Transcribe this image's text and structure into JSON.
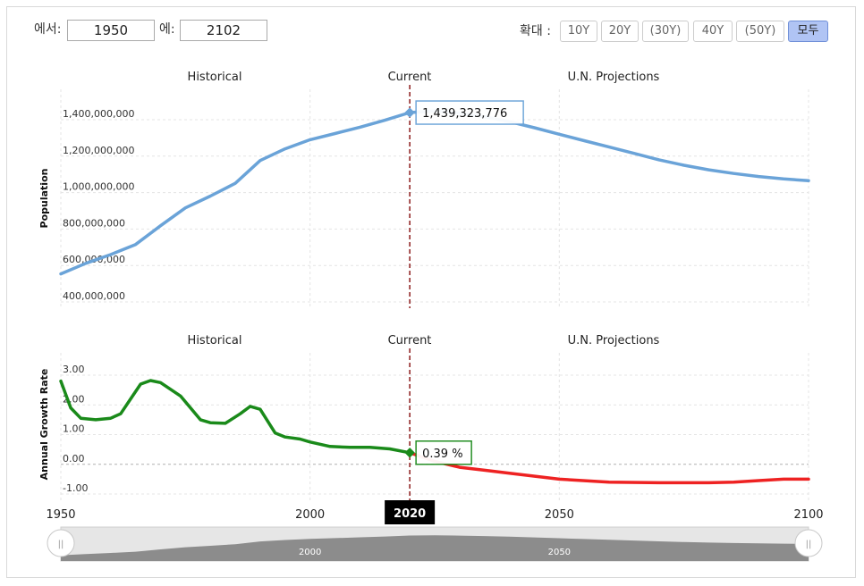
{
  "range": {
    "from_label": "에서:",
    "from_value": "1950",
    "to_label": "에:",
    "to_value": "2102"
  },
  "zoom": {
    "label": "확대 :",
    "buttons": [
      "10Y",
      "20Y",
      "(30Y)",
      "40Y",
      "(50Y)",
      "모두"
    ],
    "active_index": 5
  },
  "colors": {
    "population_line": "#6aa3d8",
    "growth_historical": "#1a8a1a",
    "growth_projection": "#ee2222",
    "current_marker": "#8b1a1a"
  },
  "chart_data": [
    {
      "type": "line",
      "section_labels": [
        "Historical",
        "Current",
        "U.N. Projections"
      ],
      "ylabel": "Population",
      "yticks": [
        "400,000,000",
        "600,000,000",
        "800,000,000",
        "1,000,000,000",
        "1,200,000,000",
        "1,400,000,000"
      ],
      "ylim": [
        400000000,
        1600000000
      ],
      "xlim": [
        1950,
        2100
      ],
      "current_year": 2020,
      "current_label": "1,439,323,776",
      "series": [
        {
          "values": [
            [
              1950,
              554000000
            ],
            [
              1955,
              612000000
            ],
            [
              1960,
              660000000
            ],
            [
              1965,
              715000000
            ],
            [
              1970,
              818000000
            ],
            [
              1975,
              916000000
            ],
            [
              1980,
              981000000
            ],
            [
              1985,
              1051000000
            ],
            [
              1990,
              1176000000
            ],
            [
              1995,
              1240000000
            ],
            [
              2000,
              1290000000
            ],
            [
              2005,
              1324000000
            ],
            [
              2010,
              1359000000
            ],
            [
              2015,
              1397000000
            ],
            [
              2020,
              1439000000
            ],
            [
              2025,
              1448000000
            ],
            [
              2030,
              1436000000
            ],
            [
              2035,
              1416000000
            ],
            [
              2040,
              1389000000
            ],
            [
              2045,
              1356000000
            ],
            [
              2050,
              1320000000
            ],
            [
              2055,
              1285000000
            ],
            [
              2060,
              1250000000
            ],
            [
              2065,
              1215000000
            ],
            [
              2070,
              1180000000
            ],
            [
              2075,
              1150000000
            ],
            [
              2080,
              1125000000
            ],
            [
              2085,
              1105000000
            ],
            [
              2090,
              1088000000
            ],
            [
              2095,
              1075000000
            ],
            [
              2100,
              1065000000
            ]
          ]
        }
      ]
    },
    {
      "type": "line",
      "section_labels": [
        "Historical",
        "Current",
        "U.N. Projections"
      ],
      "ylabel": "Annual Growth Rate",
      "yticks": [
        "-1.00",
        "0.00",
        "1.00",
        "2.00",
        "3.00"
      ],
      "ylim": [
        -1,
        3.5
      ],
      "xlim": [
        1950,
        2100
      ],
      "current_year": 2020,
      "current_label": "0.39 %",
      "series": [
        {
          "values": [
            [
              1950,
              2.8
            ],
            [
              1952,
              1.9
            ],
            [
              1954,
              1.55
            ],
            [
              1957,
              1.5
            ],
            [
              1960,
              1.55
            ],
            [
              1962,
              1.7
            ],
            [
              1964,
              2.2
            ],
            [
              1966,
              2.7
            ],
            [
              1968,
              2.82
            ],
            [
              1970,
              2.75
            ],
            [
              1974,
              2.3
            ],
            [
              1978,
              1.5
            ],
            [
              1980,
              1.4
            ],
            [
              1983,
              1.38
            ],
            [
              1986,
              1.7
            ],
            [
              1988,
              1.95
            ],
            [
              1990,
              1.85
            ],
            [
              1993,
              1.05
            ],
            [
              1995,
              0.92
            ],
            [
              1998,
              0.85
            ],
            [
              2000,
              0.75
            ],
            [
              2004,
              0.6
            ],
            [
              2008,
              0.57
            ],
            [
              2012,
              0.57
            ],
            [
              2016,
              0.52
            ],
            [
              2020,
              0.39
            ]
          ]
        },
        {
          "values": [
            [
              2020,
              0.39
            ],
            [
              2025,
              0.1
            ],
            [
              2030,
              -0.1
            ],
            [
              2035,
              -0.2
            ],
            [
              2040,
              -0.3
            ],
            [
              2050,
              -0.5
            ],
            [
              2060,
              -0.6
            ],
            [
              2070,
              -0.62
            ],
            [
              2080,
              -0.62
            ],
            [
              2085,
              -0.6
            ],
            [
              2090,
              -0.55
            ],
            [
              2095,
              -0.5
            ],
            [
              2100,
              -0.5
            ]
          ]
        }
      ]
    }
  ],
  "x_axis": {
    "tick_labels": [
      "1950",
      "2000",
      "2050",
      "2100"
    ],
    "current_badge": "2020"
  },
  "navigator": {
    "tick_labels": [
      "2000",
      "2050"
    ],
    "handle_glyph": "||"
  }
}
